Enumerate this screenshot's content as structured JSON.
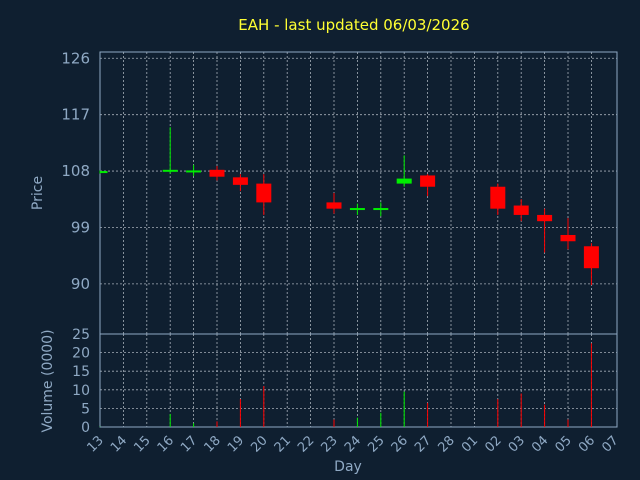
{
  "chart_data": {
    "type": "candlestick",
    "title": "EAH - last updated 06/03/2026",
    "xlabel": "Day",
    "ylabel_price": "Price",
    "ylabel_volume": "Volume (0000)",
    "x_ticks": [
      "13",
      "14",
      "15",
      "16",
      "17",
      "18",
      "19",
      "20",
      "21",
      "22",
      "23",
      "24",
      "25",
      "26",
      "27",
      "28",
      "01",
      "02",
      "03",
      "04",
      "05",
      "06",
      "07"
    ],
    "price_ticks": [
      90,
      99,
      108,
      117,
      126
    ],
    "price_ylim": [
      82,
      127
    ],
    "volume_ticks": [
      0,
      5,
      10,
      15,
      20,
      25
    ],
    "volume_ylim": [
      0,
      25
    ],
    "grid": true,
    "colors": {
      "up": "#00ee00",
      "down": "#ff0000",
      "background": "#0f1f30",
      "axis": "#8fa9c4",
      "title": "#ffff33"
    },
    "candles": [
      {
        "day": "13",
        "open": 107.8,
        "high": 108.1,
        "low": 107.6,
        "close": 108.0,
        "volume": 0.1
      },
      {
        "day": "16",
        "open": 107.9,
        "high": 115.0,
        "low": 107.6,
        "close": 108.2,
        "volume": 3.5
      },
      {
        "day": "17",
        "open": 107.9,
        "high": 109.0,
        "low": 107.2,
        "close": 108.1,
        "volume": 1.0
      },
      {
        "day": "18",
        "open": 108.2,
        "high": 108.8,
        "low": 106.5,
        "close": 107.1,
        "volume": 1.5
      },
      {
        "day": "19",
        "open": 107.0,
        "high": 107.5,
        "low": 104.8,
        "close": 105.8,
        "volume": 7.5
      },
      {
        "day": "20",
        "open": 106.0,
        "high": 107.5,
        "low": 101.0,
        "close": 103.0,
        "volume": 11.0
      },
      {
        "day": "23",
        "open": 103.0,
        "high": 104.5,
        "low": 101.2,
        "close": 102.0,
        "volume": 2.0
      },
      {
        "day": "24",
        "open": 101.9,
        "high": 102.8,
        "low": 101.0,
        "close": 102.1,
        "volume": 2.5
      },
      {
        "day": "25",
        "open": 101.9,
        "high": 103.0,
        "low": 100.8,
        "close": 102.1,
        "volume": 3.8
      },
      {
        "day": "26",
        "open": 106.0,
        "high": 110.5,
        "low": 105.5,
        "close": 106.8,
        "volume": 9.5
      },
      {
        "day": "27",
        "open": 107.3,
        "high": 107.5,
        "low": 104.0,
        "close": 105.5,
        "volume": 6.5
      },
      {
        "day": "02",
        "open": 105.5,
        "high": 106.0,
        "low": 101.0,
        "close": 102.0,
        "volume": 7.5
      },
      {
        "day": "03",
        "open": 102.5,
        "high": 103.5,
        "low": 100.0,
        "close": 101.0,
        "volume": 9.0
      },
      {
        "day": "04",
        "open": 101.0,
        "high": 102.0,
        "low": 95.0,
        "close": 100.0,
        "volume": 6.0
      },
      {
        "day": "05",
        "open": 97.8,
        "high": 100.5,
        "low": 95.5,
        "close": 96.8,
        "volume": 2.0
      },
      {
        "day": "06",
        "open": 96.0,
        "high": 96.5,
        "low": 89.8,
        "close": 92.5,
        "volume": 22.5
      }
    ]
  }
}
